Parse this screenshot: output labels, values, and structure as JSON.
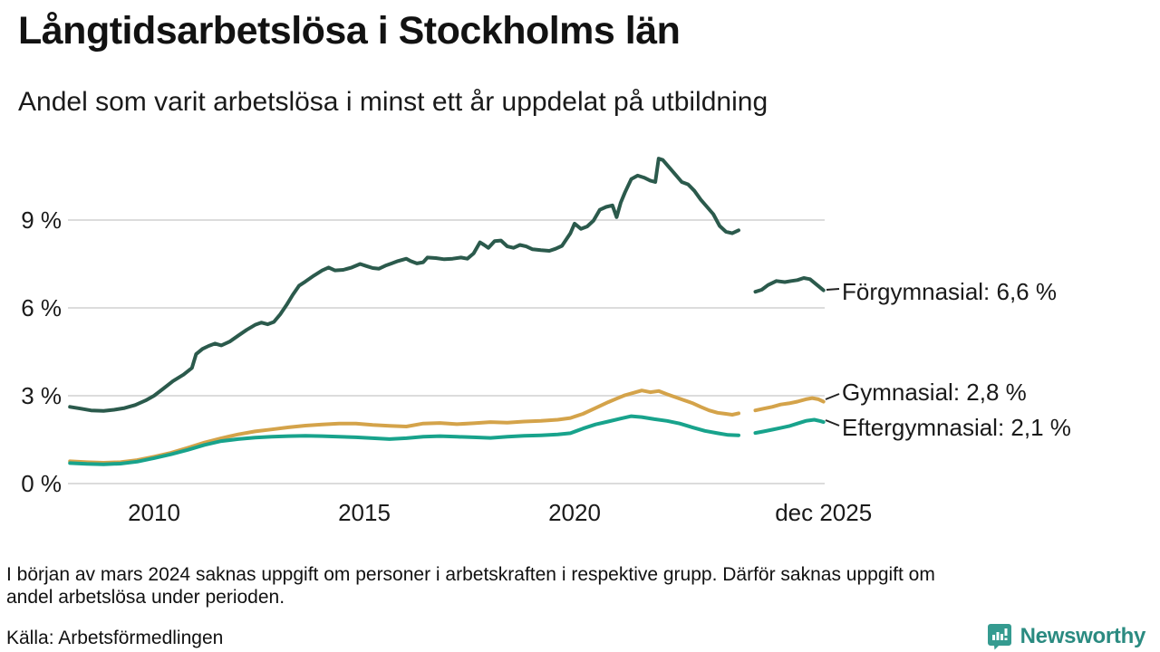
{
  "header": {
    "title": "Långtidsarbetslösa i Stockholms län",
    "subtitle": "Andel som varit arbetslösa i minst ett år uppdelat på utbildning"
  },
  "footer": {
    "note_lines": [
      "I början av mars 2024 saknas uppgift om personer i arbetskraften i respektive grupp. Därför saknas uppgift om",
      "andel arbetslösa under perioden."
    ],
    "source": "Källa: Arbetsförmedlingen",
    "brand": "Newsworthy"
  },
  "colors": {
    "forgymnasial": "#2b5a4c",
    "gymnasial": "#d4a34a",
    "eftergymnasial": "#18a38c",
    "grid": "#dcdcdc",
    "text": "#1a1a1a",
    "leader": "#222222",
    "brand_teal": "#2b8b81",
    "brand_icon": "#359b90"
  },
  "chart_data": {
    "type": "line",
    "title": "Långtidsarbetslösa i Stockholms län",
    "subtitle": "Andel som varit arbetslösa i minst ett år uppdelat på utbildning",
    "unit": "%",
    "x_range": [
      2008,
      2026
    ],
    "ylim": [
      0,
      11.5
    ],
    "grid": "horizontal",
    "gap_period": "mars 2024 (data saknas)",
    "y_axis": {
      "ticks": [
        {
          "value": 0,
          "label": "0 %"
        },
        {
          "value": 3,
          "label": "3 %"
        },
        {
          "value": 6,
          "label": "6 %"
        },
        {
          "value": 9,
          "label": "9 %"
        }
      ]
    },
    "x_axis": {
      "ticks": [
        {
          "year": 2010,
          "label": "2010"
        },
        {
          "year": 2015,
          "label": "2015"
        },
        {
          "year": 2020,
          "label": "2020"
        },
        {
          "year": 2025.92,
          "label": "dec 2025"
        }
      ]
    },
    "series": [
      {
        "name": "Förgymnasial",
        "end_label": "Förgymnasial: 6,6 %",
        "final_value": 6.6,
        "color_key": "forgymnasial",
        "segments": [
          [
            [
              2008.0,
              2.62
            ],
            [
              2008.25,
              2.56
            ],
            [
              2008.5,
              2.5
            ],
            [
              2008.8,
              2.48
            ],
            [
              2009.05,
              2.52
            ],
            [
              2009.3,
              2.58
            ],
            [
              2009.55,
              2.68
            ],
            [
              2009.8,
              2.84
            ],
            [
              2010.0,
              3.0
            ],
            [
              2010.2,
              3.22
            ],
            [
              2010.45,
              3.5
            ],
            [
              2010.7,
              3.72
            ],
            [
              2010.9,
              3.95
            ],
            [
              2011.0,
              4.42
            ],
            [
              2011.15,
              4.6
            ],
            [
              2011.3,
              4.7
            ],
            [
              2011.45,
              4.78
            ],
            [
              2011.6,
              4.72
            ],
            [
              2011.8,
              4.85
            ],
            [
              2012.0,
              5.05
            ],
            [
              2012.2,
              5.25
            ],
            [
              2012.4,
              5.42
            ],
            [
              2012.55,
              5.5
            ],
            [
              2012.7,
              5.44
            ],
            [
              2012.85,
              5.52
            ],
            [
              2013.0,
              5.78
            ],
            [
              2013.15,
              6.1
            ],
            [
              2013.3,
              6.45
            ],
            [
              2013.45,
              6.76
            ],
            [
              2013.6,
              6.9
            ],
            [
              2013.8,
              7.1
            ],
            [
              2014.0,
              7.28
            ],
            [
              2014.15,
              7.38
            ],
            [
              2014.3,
              7.28
            ],
            [
              2014.5,
              7.3
            ],
            [
              2014.7,
              7.38
            ],
            [
              2014.9,
              7.5
            ],
            [
              2015.05,
              7.43
            ],
            [
              2015.2,
              7.36
            ],
            [
              2015.35,
              7.34
            ],
            [
              2015.5,
              7.44
            ],
            [
              2015.65,
              7.52
            ],
            [
              2015.8,
              7.6
            ],
            [
              2016.0,
              7.68
            ],
            [
              2016.1,
              7.6
            ],
            [
              2016.25,
              7.52
            ],
            [
              2016.4,
              7.56
            ],
            [
              2016.5,
              7.72
            ],
            [
              2016.7,
              7.7
            ],
            [
              2016.9,
              7.66
            ],
            [
              2017.1,
              7.68
            ],
            [
              2017.3,
              7.72
            ],
            [
              2017.45,
              7.68
            ],
            [
              2017.6,
              7.86
            ],
            [
              2017.75,
              8.24
            ],
            [
              2017.85,
              8.15
            ],
            [
              2017.95,
              8.05
            ],
            [
              2018.1,
              8.28
            ],
            [
              2018.25,
              8.3
            ],
            [
              2018.4,
              8.1
            ],
            [
              2018.55,
              8.05
            ],
            [
              2018.7,
              8.15
            ],
            [
              2018.85,
              8.1
            ],
            [
              2019.0,
              8.0
            ],
            [
              2019.2,
              7.97
            ],
            [
              2019.4,
              7.95
            ],
            [
              2019.55,
              8.02
            ],
            [
              2019.7,
              8.12
            ],
            [
              2019.9,
              8.55
            ],
            [
              2020.0,
              8.88
            ],
            [
              2020.15,
              8.7
            ],
            [
              2020.3,
              8.78
            ],
            [
              2020.45,
              8.98
            ],
            [
              2020.6,
              9.35
            ],
            [
              2020.75,
              9.45
            ],
            [
              2020.9,
              9.5
            ],
            [
              2021.0,
              9.1
            ],
            [
              2021.1,
              9.6
            ],
            [
              2021.2,
              9.95
            ],
            [
              2021.35,
              10.4
            ],
            [
              2021.5,
              10.52
            ],
            [
              2021.65,
              10.45
            ],
            [
              2021.8,
              10.35
            ],
            [
              2021.92,
              10.3
            ],
            [
              2022.0,
              11.1
            ],
            [
              2022.1,
              11.05
            ],
            [
              2022.25,
              10.8
            ],
            [
              2022.4,
              10.55
            ],
            [
              2022.55,
              10.3
            ],
            [
              2022.7,
              10.22
            ],
            [
              2022.85,
              10.0
            ],
            [
              2023.0,
              9.7
            ],
            [
              2023.15,
              9.45
            ],
            [
              2023.3,
              9.2
            ],
            [
              2023.45,
              8.8
            ],
            [
              2023.6,
              8.6
            ],
            [
              2023.75,
              8.55
            ],
            [
              2023.9,
              8.65
            ]
          ],
          [
            [
              2024.3,
              6.55
            ],
            [
              2024.45,
              6.62
            ],
            [
              2024.6,
              6.78
            ],
            [
              2024.8,
              6.92
            ],
            [
              2025.0,
              6.88
            ],
            [
              2025.15,
              6.92
            ],
            [
              2025.3,
              6.95
            ],
            [
              2025.45,
              7.02
            ],
            [
              2025.6,
              6.98
            ],
            [
              2025.75,
              6.8
            ],
            [
              2025.92,
              6.6
            ]
          ]
        ]
      },
      {
        "name": "Gymnasial",
        "end_label": "Gymnasial: 2,8 %",
        "final_value": 2.8,
        "color_key": "gymnasial",
        "segments": [
          [
            [
              2008.0,
              0.76
            ],
            [
              2008.4,
              0.73
            ],
            [
              2008.8,
              0.71
            ],
            [
              2009.2,
              0.73
            ],
            [
              2009.6,
              0.8
            ],
            [
              2010.0,
              0.92
            ],
            [
              2010.4,
              1.05
            ],
            [
              2010.8,
              1.22
            ],
            [
              2011.2,
              1.4
            ],
            [
              2011.6,
              1.55
            ],
            [
              2012.0,
              1.68
            ],
            [
              2012.4,
              1.78
            ],
            [
              2012.8,
              1.85
            ],
            [
              2013.2,
              1.92
            ],
            [
              2013.6,
              1.98
            ],
            [
              2014.0,
              2.02
            ],
            [
              2014.4,
              2.05
            ],
            [
              2014.8,
              2.05
            ],
            [
              2015.2,
              2.0
            ],
            [
              2015.6,
              1.97
            ],
            [
              2016.0,
              1.95
            ],
            [
              2016.4,
              2.05
            ],
            [
              2016.8,
              2.07
            ],
            [
              2017.2,
              2.03
            ],
            [
              2017.6,
              2.06
            ],
            [
              2018.0,
              2.1
            ],
            [
              2018.4,
              2.08
            ],
            [
              2018.8,
              2.12
            ],
            [
              2019.2,
              2.14
            ],
            [
              2019.6,
              2.18
            ],
            [
              2019.9,
              2.24
            ],
            [
              2020.2,
              2.38
            ],
            [
              2020.5,
              2.58
            ],
            [
              2020.8,
              2.78
            ],
            [
              2021.0,
              2.9
            ],
            [
              2021.2,
              3.02
            ],
            [
              2021.4,
              3.1
            ],
            [
              2021.6,
              3.18
            ],
            [
              2021.8,
              3.12
            ],
            [
              2022.0,
              3.16
            ],
            [
              2022.2,
              3.05
            ],
            [
              2022.4,
              2.95
            ],
            [
              2022.6,
              2.85
            ],
            [
              2022.8,
              2.75
            ],
            [
              2023.0,
              2.62
            ],
            [
              2023.2,
              2.5
            ],
            [
              2023.4,
              2.42
            ],
            [
              2023.6,
              2.38
            ],
            [
              2023.75,
              2.35
            ],
            [
              2023.9,
              2.4
            ]
          ],
          [
            [
              2024.3,
              2.5
            ],
            [
              2024.5,
              2.56
            ],
            [
              2024.7,
              2.62
            ],
            [
              2024.9,
              2.7
            ],
            [
              2025.1,
              2.74
            ],
            [
              2025.3,
              2.8
            ],
            [
              2025.5,
              2.88
            ],
            [
              2025.65,
              2.92
            ],
            [
              2025.8,
              2.88
            ],
            [
              2025.92,
              2.8
            ]
          ]
        ]
      },
      {
        "name": "Eftergymnasial",
        "end_label": "Eftergymnasial: 2,1 %",
        "final_value": 2.1,
        "color_key": "eftergymnasial",
        "segments": [
          [
            [
              2008.0,
              0.7
            ],
            [
              2008.4,
              0.67
            ],
            [
              2008.8,
              0.66
            ],
            [
              2009.2,
              0.68
            ],
            [
              2009.6,
              0.75
            ],
            [
              2010.0,
              0.87
            ],
            [
              2010.4,
              1.0
            ],
            [
              2010.8,
              1.15
            ],
            [
              2011.2,
              1.32
            ],
            [
              2011.6,
              1.45
            ],
            [
              2012.0,
              1.52
            ],
            [
              2012.4,
              1.57
            ],
            [
              2012.8,
              1.6
            ],
            [
              2013.2,
              1.62
            ],
            [
              2013.6,
              1.63
            ],
            [
              2014.0,
              1.62
            ],
            [
              2014.4,
              1.6
            ],
            [
              2014.8,
              1.58
            ],
            [
              2015.2,
              1.55
            ],
            [
              2015.6,
              1.52
            ],
            [
              2016.0,
              1.55
            ],
            [
              2016.4,
              1.6
            ],
            [
              2016.8,
              1.62
            ],
            [
              2017.2,
              1.6
            ],
            [
              2017.6,
              1.58
            ],
            [
              2018.0,
              1.56
            ],
            [
              2018.4,
              1.6
            ],
            [
              2018.8,
              1.63
            ],
            [
              2019.2,
              1.65
            ],
            [
              2019.6,
              1.68
            ],
            [
              2019.9,
              1.72
            ],
            [
              2020.2,
              1.88
            ],
            [
              2020.5,
              2.02
            ],
            [
              2020.8,
              2.12
            ],
            [
              2021.1,
              2.22
            ],
            [
              2021.35,
              2.3
            ],
            [
              2021.6,
              2.27
            ],
            [
              2021.9,
              2.2
            ],
            [
              2022.2,
              2.14
            ],
            [
              2022.5,
              2.05
            ],
            [
              2022.8,
              1.92
            ],
            [
              2023.1,
              1.8
            ],
            [
              2023.4,
              1.72
            ],
            [
              2023.65,
              1.66
            ],
            [
              2023.9,
              1.65
            ]
          ],
          [
            [
              2024.3,
              1.73
            ],
            [
              2024.5,
              1.78
            ],
            [
              2024.7,
              1.84
            ],
            [
              2024.9,
              1.9
            ],
            [
              2025.1,
              1.96
            ],
            [
              2025.3,
              2.05
            ],
            [
              2025.5,
              2.14
            ],
            [
              2025.7,
              2.18
            ],
            [
              2025.85,
              2.13
            ],
            [
              2025.92,
              2.1
            ]
          ]
        ]
      }
    ]
  }
}
